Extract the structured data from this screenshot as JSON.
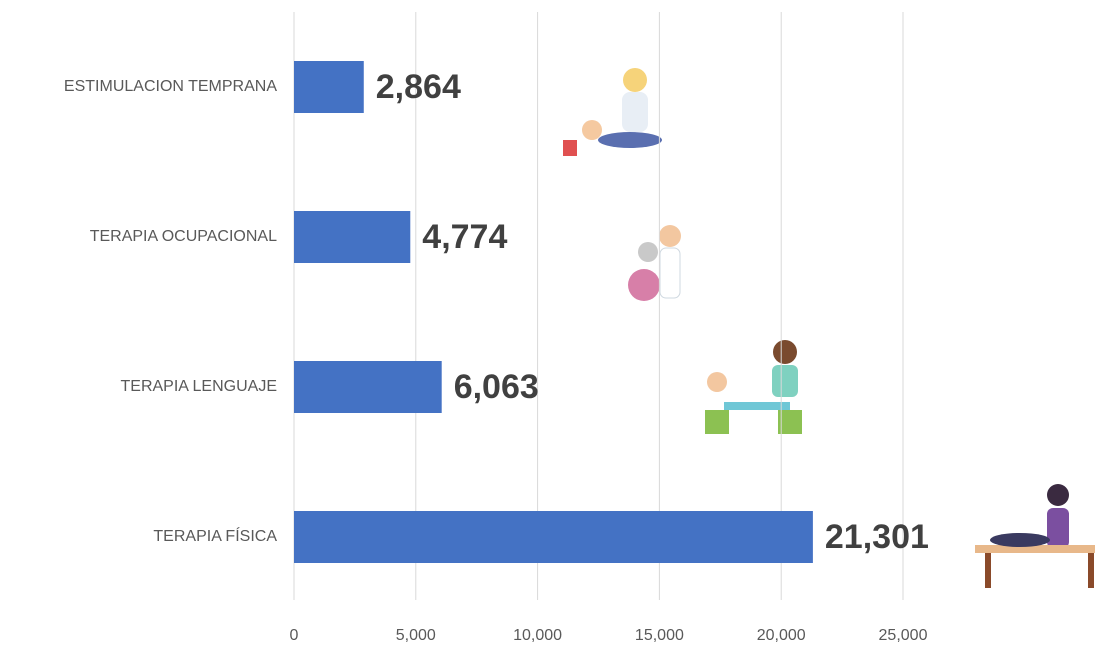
{
  "chart_data": {
    "type": "hbar",
    "categories": [
      "ESTIMULACION TEMPRANA",
      "TERAPIA OCUPACIONAL",
      "TERAPIA LENGUAJE",
      "TERAPIA FÍSICA"
    ],
    "values": [
      2864,
      4774,
      6063,
      21301
    ],
    "value_labels": [
      "2,864",
      "4,774",
      "6,063",
      "21,301"
    ],
    "color": "#4472c4",
    "xlim": [
      0,
      25000
    ],
    "xticks": [
      0,
      {
        "value": 5000,
        "label": "5,000"
      },
      {
        "value": 10000,
        "label": "10,000"
      },
      {
        "value": 15000,
        "label": "15,000"
      },
      {
        "value": 20000,
        "label": "20,000"
      },
      {
        "value": 25000,
        "label": "25,000"
      }
    ],
    "grid": true
  }
}
